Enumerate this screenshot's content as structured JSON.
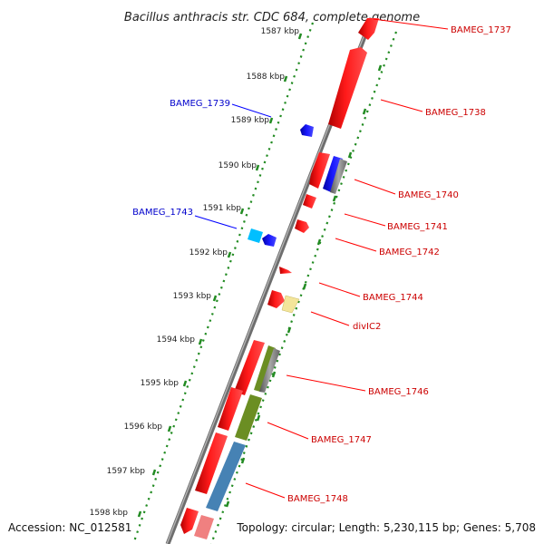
{
  "title": "Bacillus anthracis str. CDC 684, complete genome",
  "footer": {
    "accession": "Accession: NC_012581",
    "summary": "Topology: circular; Length: 5,230,115 bp; Genes: 5,708"
  },
  "ticks": [
    "1587 kbp",
    "1588 kbp",
    "1589 kbp",
    "1590 kbp",
    "1591 kbp",
    "1592 kbp",
    "1593 kbp",
    "1594 kbp",
    "1595 kbp",
    "1596 kbp",
    "1597 kbp",
    "1598 kbp"
  ],
  "genes_right": [
    "BAMEG_1737",
    "BAMEG_1738",
    "BAMEG_1740",
    "BAMEG_1741",
    "BAMEG_1742",
    "BAMEG_1744",
    "divIC2",
    "BAMEG_1746",
    "BAMEG_1747",
    "BAMEG_1748"
  ],
  "genes_left": [
    "BAMEG_1739",
    "BAMEG_1743"
  ],
  "colors": {
    "forward_gene": "#ff0000",
    "reverse_gene": "#0000ff",
    "label_forward": "#cc0000",
    "label_reverse": "#0000cc",
    "backbone": "#808080",
    "tick_dots": "#228b22"
  }
}
